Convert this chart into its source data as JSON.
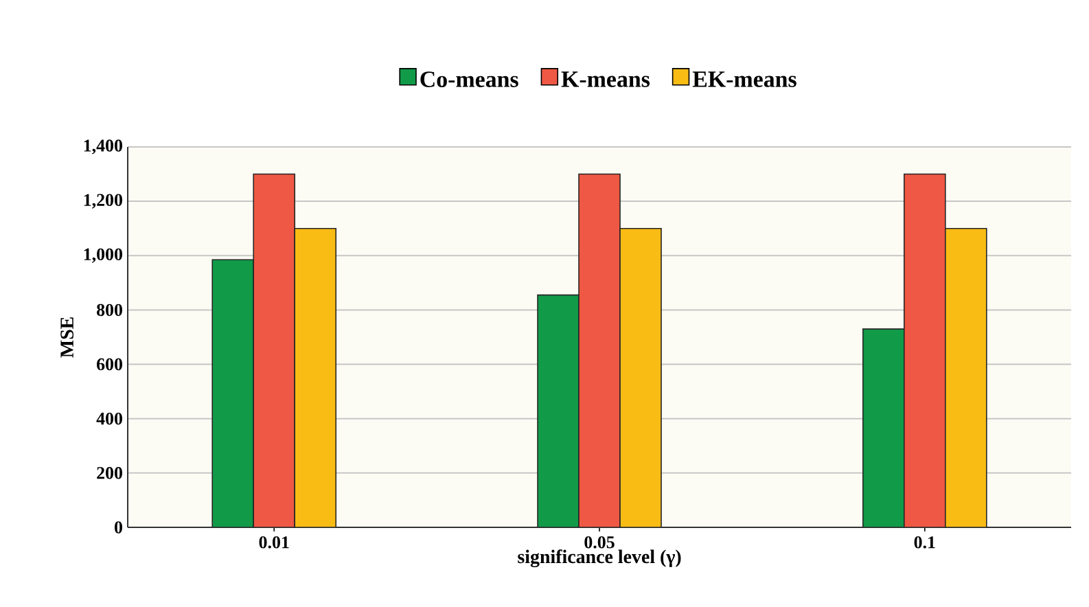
{
  "chart_data": {
    "type": "bar",
    "xlabel": "significance level (γ)",
    "ylabel": "MSE",
    "categories": [
      "0.01",
      "0.05",
      "0.1"
    ],
    "series": [
      {
        "name": "Co-means",
        "color": "#119a48",
        "values": [
          985,
          855,
          730
        ]
      },
      {
        "name": "K-means",
        "color": "#ef5844",
        "values": [
          1300,
          1300,
          1300
        ]
      },
      {
        "name": "EK-means",
        "color": "#f9bc15",
        "values": [
          1100,
          1100,
          1100
        ]
      }
    ],
    "ylim": [
      0,
      1400
    ],
    "yticks": [
      0,
      200,
      400,
      600,
      800,
      {
        "value": 1000,
        "label": "1,000"
      },
      {
        "value": 1200,
        "label": "1,200"
      },
      {
        "value": 1400,
        "label": "1,400"
      }
    ],
    "grid": "y",
    "legend": "top"
  }
}
